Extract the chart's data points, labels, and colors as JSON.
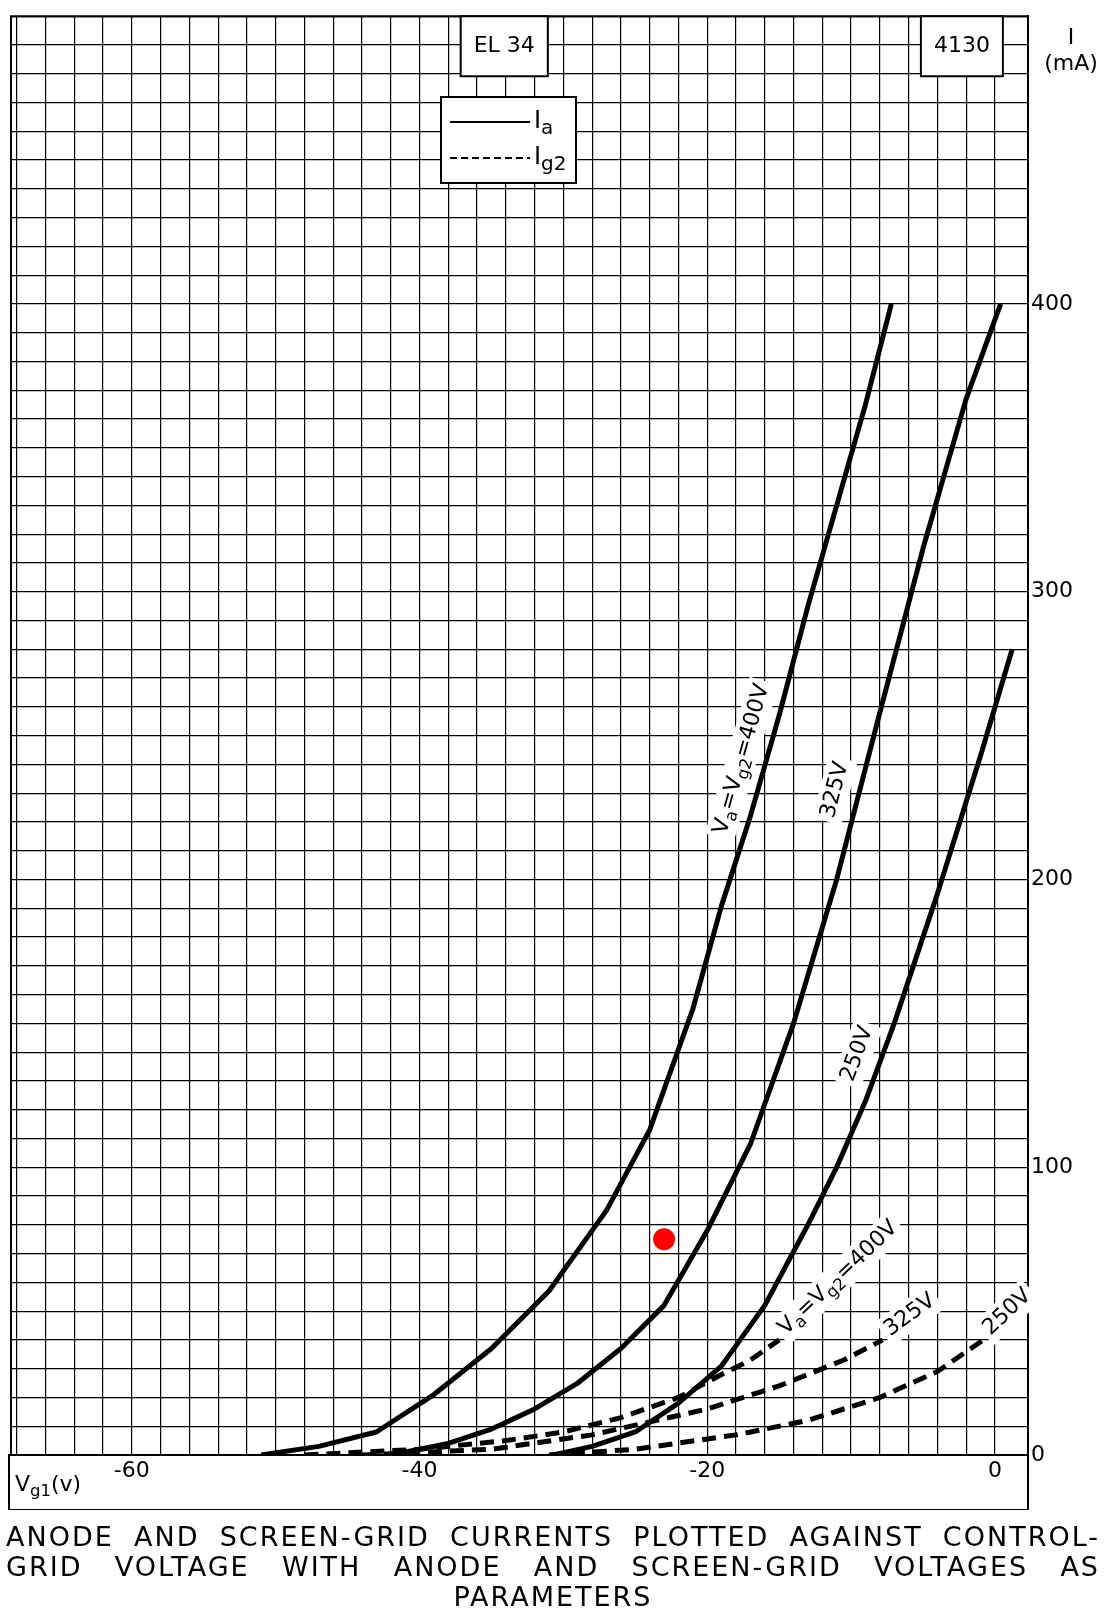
{
  "chart_data": {
    "type": "line",
    "xlabel": "V$_{g1}$(v)",
    "ylabel": "I (mA)",
    "annotations": [
      "EL 34",
      "4130",
      "I$_{a}$",
      "I$_{g2}$",
      "ANODE AND SCREEN-GRID CURRENTS PLOTTED AGAINST CONTROL-GRID VOLTAGE WITH ANODE AND SCREEN-GRID VOLTAGES AS PARAMETERS"
    ],
    "xlim": [
      -68.4,
      2.3
    ],
    "ylim": [
      0,
      500
    ],
    "xticks": [
      {
        "value": -68,
        "label": null
      },
      {
        "value": -66,
        "label": null
      },
      {
        "value": -64,
        "label": null
      },
      {
        "value": -62,
        "label": null
      },
      -60,
      {
        "value": -58,
        "label": null
      },
      {
        "value": -56,
        "label": null
      },
      {
        "value": -54,
        "label": null
      },
      {
        "value": -52,
        "label": null
      },
      {
        "value": -50,
        "label": null
      },
      {
        "value": -48,
        "label": null
      },
      {
        "value": -46,
        "label": null
      },
      {
        "value": -44,
        "label": null
      },
      {
        "value": -42,
        "label": null
      },
      -40,
      {
        "value": -38,
        "label": null
      },
      {
        "value": -36,
        "label": null
      },
      {
        "value": -34,
        "label": null
      },
      {
        "value": -32,
        "label": null
      },
      {
        "value": -30,
        "label": null
      },
      {
        "value": -28,
        "label": null
      },
      {
        "value": -26,
        "label": null
      },
      {
        "value": -24,
        "label": null
      },
      {
        "value": -22,
        "label": null
      },
      -20,
      {
        "value": -18,
        "label": null
      },
      {
        "value": -16,
        "label": null
      },
      {
        "value": -14,
        "label": null
      },
      {
        "value": -12,
        "label": null
      },
      {
        "value": -10,
        "label": null
      },
      {
        "value": -8,
        "label": null
      },
      {
        "value": -6,
        "label": null
      },
      {
        "value": -4,
        "label": null
      },
      {
        "value": -2,
        "label": null
      },
      0
    ],
    "yticks": [
      0,
      {
        "value": 10,
        "label": null
      },
      {
        "value": 20,
        "label": null
      },
      {
        "value": 30,
        "label": null
      },
      {
        "value": 40,
        "label": null
      },
      {
        "value": 50,
        "label": null
      },
      {
        "value": 60,
        "label": null
      },
      {
        "value": 70,
        "label": null
      },
      {
        "value": 80,
        "label": null
      },
      {
        "value": 90,
        "label": null
      },
      100,
      {
        "value": 110,
        "label": null
      },
      {
        "value": 120,
        "label": null
      },
      {
        "value": 130,
        "label": null
      },
      {
        "value": 140,
        "label": null
      },
      {
        "value": 150,
        "label": null
      },
      {
        "value": 160,
        "label": null
      },
      {
        "value": 170,
        "label": null
      },
      {
        "value": 180,
        "label": null
      },
      {
        "value": 190,
        "label": null
      },
      200,
      {
        "value": 210,
        "label": null
      },
      {
        "value": 220,
        "label": null
      },
      {
        "value": 230,
        "label": null
      },
      {
        "value": 240,
        "label": null
      },
      {
        "value": 250,
        "label": null
      },
      {
        "value": 260,
        "label": null
      },
      {
        "value": 270,
        "label": null
      },
      {
        "value": 280,
        "label": null
      },
      {
        "value": 290,
        "label": null
      },
      300,
      {
        "value": 310,
        "label": null
      },
      {
        "value": 320,
        "label": null
      },
      {
        "value": 330,
        "label": null
      },
      {
        "value": 340,
        "label": null
      },
      {
        "value": 350,
        "label": null
      },
      {
        "value": 360,
        "label": null
      },
      {
        "value": 370,
        "label": null
      },
      {
        "value": 380,
        "label": null
      },
      {
        "value": 390,
        "label": null
      },
      400,
      {
        "value": 410,
        "label": null
      },
      {
        "value": 420,
        "label": null
      },
      {
        "value": 430,
        "label": null
      },
      {
        "value": 440,
        "label": null
      },
      {
        "value": 450,
        "label": null
      },
      {
        "value": 460,
        "label": null
      },
      {
        "value": 470,
        "label": null
      },
      {
        "value": 480,
        "label": null
      },
      {
        "value": 490,
        "label": null
      },
      {
        "value": 500,
        "label": null
      }
    ],
    "grid": true,
    "marker": "none",
    "series": [
      {
        "name": "V$_{a}$=V$_{g2}$=400V",
        "color": "#000000",
        "line_style": "solid",
        "x": [
          -51,
          -47,
          -43,
          -39,
          -35,
          -31,
          -27,
          -24,
          -21,
          -19,
          -17,
          -15,
          -13,
          -11,
          -9,
          -7.2
        ],
        "values": [
          0,
          3,
          8,
          21,
          37,
          57,
          85,
          113,
          155,
          191,
          222,
          257,
          295,
          330,
          365,
          400
        ]
      },
      {
        "name": "325V",
        "color": "#000000",
        "line_style": "solid",
        "x": [
          -42,
          -38,
          -35,
          -32,
          -29,
          -26,
          -23,
          -20,
          -17,
          -14,
          -11,
          -8,
          -5,
          -2,
          0.4
        ],
        "values": [
          0,
          4,
          9,
          16,
          25,
          37,
          52,
          78,
          108,
          150,
          200,
          258,
          315,
          367,
          400
        ]
      },
      {
        "name": "250V",
        "color": "#000000",
        "line_style": "solid",
        "x": [
          -30.7,
          -28,
          -25,
          -22,
          -19,
          -16,
          -13,
          -11,
          -9,
          -7,
          -4,
          -1,
          1.2
        ],
        "values": [
          0,
          3,
          8,
          18,
          31,
          52,
          80,
          100,
          123,
          150,
          195,
          243,
          280
        ]
      },
      {
        "name": "V$_{a}$=V$_{g2}$=400V",
        "color": "#000000",
        "line_style": "dashed",
        "x": [
          -48,
          -40,
          -34,
          -30,
          -26,
          -22,
          -19,
          -17,
          -15
        ],
        "values": [
          0,
          2,
          5,
          8,
          13,
          20,
          28,
          33,
          40
        ]
      },
      {
        "name": "325V",
        "color": "#000000",
        "line_style": "dashed",
        "x": [
          -44,
          -35,
          -28,
          -20,
          -15,
          -10.5,
          -7.8
        ],
        "values": [
          0,
          2,
          7,
          16,
          24,
          33,
          40
        ]
      },
      {
        "name": "250V",
        "color": "#000000",
        "line_style": "dashed",
        "x": [
          -31,
          -25,
          -18,
          -13,
          -8,
          -4,
          -0.8
        ],
        "values": [
          0,
          2,
          7,
          12,
          20,
          29,
          40
        ]
      },
      {
        "type": "scatter",
        "marker": "circle",
        "color": "#ff0000",
        "x": [
          -23
        ],
        "values": [
          75
        ]
      }
    ]
  }
}
